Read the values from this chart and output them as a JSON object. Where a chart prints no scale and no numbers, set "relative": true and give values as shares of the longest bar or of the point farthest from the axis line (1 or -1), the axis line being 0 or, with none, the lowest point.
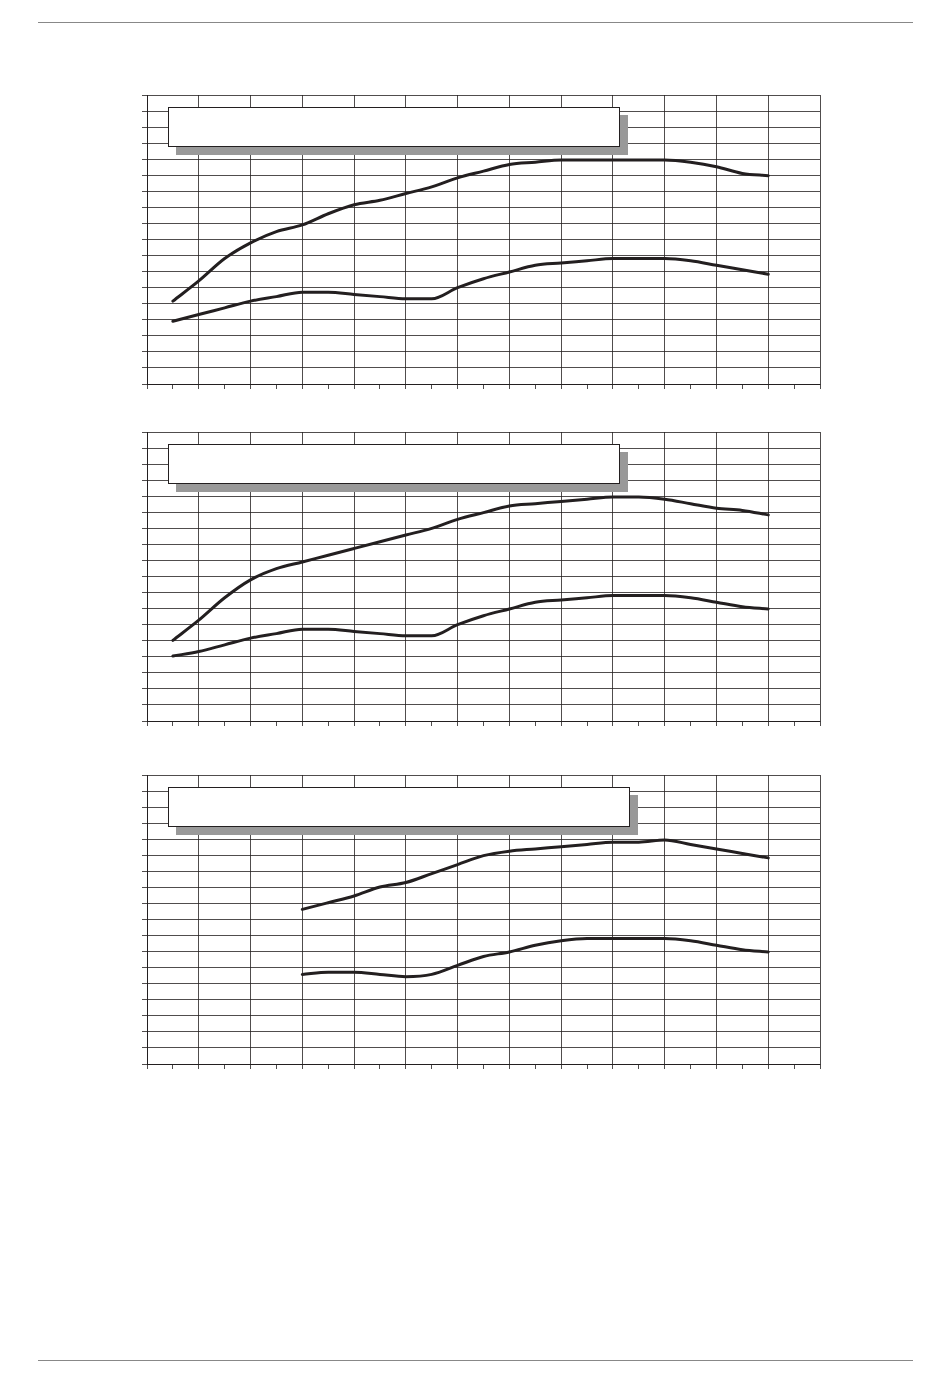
{
  "chart_data": [
    {
      "type": "line",
      "relative": true,
      "grid": true,
      "legend": false,
      "marker": "none",
      "line_style": "solid",
      "categories": [
        null,
        null,
        null,
        null,
        null,
        null,
        null,
        null,
        null,
        null,
        null,
        null,
        null,
        null,
        null,
        null,
        null,
        null,
        null,
        null,
        null,
        null,
        null,
        null,
        null,
        null,
        null
      ],
      "series": [
        {
          "color": "#231f20",
          "values": [
            null,
            0.37,
            0.46,
            0.56,
            0.63,
            0.68,
            0.71,
            0.76,
            0.8,
            0.82,
            0.85,
            0.88,
            0.92,
            0.95,
            0.98,
            0.99,
            1,
            1,
            1,
            1,
            1,
            0.99,
            0.97,
            0.94,
            0.93,
            null,
            null
          ]
        },
        {
          "color": "#231f20",
          "values": [
            null,
            0.28,
            0.31,
            0.34,
            0.37,
            0.39,
            0.41,
            0.41,
            0.4,
            0.39,
            0.38,
            0.38,
            0.43,
            0.47,
            0.5,
            0.53,
            0.54,
            0.55,
            0.56,
            0.56,
            0.56,
            0.55,
            0.53,
            0.51,
            0.49,
            null,
            null
          ]
        }
      ]
    },
    {
      "type": "line",
      "relative": true,
      "grid": true,
      "legend": false,
      "marker": "none",
      "line_style": "solid",
      "categories": [
        null,
        null,
        null,
        null,
        null,
        null,
        null,
        null,
        null,
        null,
        null,
        null,
        null,
        null,
        null,
        null,
        null,
        null,
        null,
        null,
        null,
        null,
        null,
        null,
        null,
        null,
        null
      ],
      "series": [
        {
          "color": "#231f20",
          "values": [
            null,
            0.36,
            0.45,
            0.55,
            0.63,
            0.68,
            0.71,
            0.74,
            0.77,
            0.8,
            0.83,
            0.86,
            0.9,
            0.93,
            0.96,
            0.97,
            0.98,
            0.99,
            1,
            1,
            0.99,
            0.97,
            0.95,
            0.94,
            0.92,
            null,
            null
          ]
        },
        {
          "color": "#231f20",
          "values": [
            null,
            0.29,
            0.31,
            0.34,
            0.37,
            0.39,
            0.41,
            0.41,
            0.4,
            0.39,
            0.38,
            0.38,
            0.43,
            0.47,
            0.5,
            0.53,
            0.54,
            0.55,
            0.56,
            0.56,
            0.56,
            0.55,
            0.53,
            0.51,
            0.5,
            null,
            null
          ]
        }
      ]
    },
    {
      "type": "line",
      "relative": true,
      "grid": true,
      "legend": false,
      "marker": "none",
      "line_style": "solid",
      "categories": [
        null,
        null,
        null,
        null,
        null,
        null,
        null,
        null,
        null,
        null,
        null,
        null,
        null,
        null,
        null,
        null,
        null,
        null,
        null,
        null,
        null,
        null,
        null,
        null,
        null,
        null,
        null
      ],
      "series": [
        {
          "color": "#231f20",
          "values": [
            null,
            null,
            null,
            null,
            null,
            null,
            0.69,
            0.72,
            0.75,
            0.79,
            0.81,
            0.85,
            0.89,
            0.93,
            0.95,
            0.96,
            0.97,
            0.98,
            0.99,
            0.99,
            1,
            0.98,
            0.96,
            0.94,
            0.92,
            null,
            null
          ]
        },
        {
          "color": "#231f20",
          "values": [
            null,
            null,
            null,
            null,
            null,
            null,
            0.4,
            0.41,
            0.41,
            0.4,
            0.39,
            0.4,
            0.44,
            0.48,
            0.5,
            0.53,
            0.55,
            0.56,
            0.56,
            0.56,
            0.56,
            0.55,
            0.53,
            0.51,
            0.5,
            null,
            null
          ]
        }
      ]
    }
  ]
}
